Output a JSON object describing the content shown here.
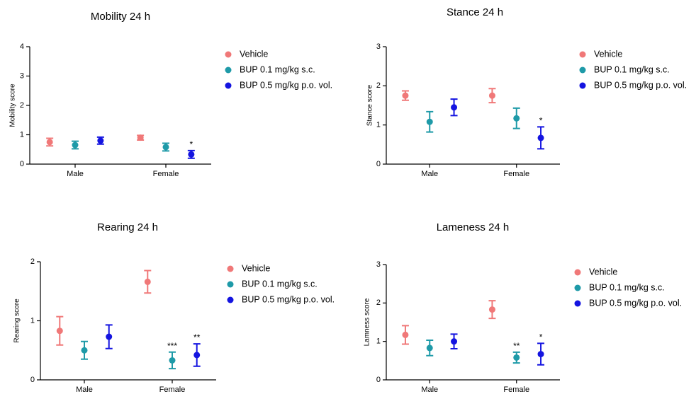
{
  "chart_data": [
    {
      "type": "errorbar",
      "title": "Mobility 24 h",
      "ylabel": "Mobility score",
      "categories": [
        "Male",
        "Female"
      ],
      "ylim": [
        0,
        4
      ],
      "yticks": [
        0,
        1,
        2,
        3,
        4
      ],
      "legend": "right",
      "series": [
        {
          "name": "Vehicle",
          "color": "#f07878",
          "values": [
            0.75,
            0.9
          ],
          "errors": [
            0.13,
            0.08
          ],
          "annotations": [
            null,
            null
          ]
        },
        {
          "name": "BUP 0.1 mg/kg s.c.",
          "color": "#1e9aa8",
          "values": [
            0.65,
            0.58
          ],
          "errors": [
            0.13,
            0.13
          ],
          "annotations": [
            null,
            null
          ]
        },
        {
          "name": "BUP 0.5 mg/kg p.o. vol.",
          "color": "#1414e0",
          "values": [
            0.8,
            0.33
          ],
          "errors": [
            0.12,
            0.13
          ],
          "annotations": [
            null,
            "*"
          ]
        }
      ]
    },
    {
      "type": "errorbar",
      "title": "Stance 24 h",
      "ylabel": "Stance score",
      "categories": [
        "Male",
        "Female"
      ],
      "ylim": [
        0,
        3
      ],
      "yticks": [
        0,
        1,
        2,
        3
      ],
      "legend": "right",
      "series": [
        {
          "name": "Vehicle",
          "color": "#f07878",
          "values": [
            1.75,
            1.75
          ],
          "errors": [
            0.12,
            0.18
          ],
          "annotations": [
            null,
            null
          ]
        },
        {
          "name": "BUP 0.1 mg/kg s.c.",
          "color": "#1e9aa8",
          "values": [
            1.08,
            1.17
          ],
          "errors": [
            0.26,
            0.26
          ],
          "annotations": [
            null,
            null
          ]
        },
        {
          "name": "BUP 0.5 mg/kg p.o. vol.",
          "color": "#1414e0",
          "values": [
            1.45,
            0.67
          ],
          "errors": [
            0.21,
            0.28
          ],
          "annotations": [
            null,
            "*"
          ]
        }
      ]
    },
    {
      "type": "errorbar",
      "title": "Rearing 24 h",
      "ylabel": "Rearing score",
      "categories": [
        "Male",
        "Female"
      ],
      "ylim": [
        0,
        2
      ],
      "yticks": [
        0,
        1,
        2
      ],
      "legend": "right",
      "series": [
        {
          "name": "Vehicle",
          "color": "#f07878",
          "values": [
            0.83,
            1.66
          ],
          "errors": [
            0.24,
            0.19
          ],
          "annotations": [
            null,
            null
          ]
        },
        {
          "name": "BUP 0.1 mg/kg s.c.",
          "color": "#1e9aa8",
          "values": [
            0.5,
            0.33
          ],
          "errors": [
            0.15,
            0.14
          ],
          "annotations": [
            null,
            "***"
          ]
        },
        {
          "name": "BUP 0.5 mg/kg p.o. vol.",
          "color": "#1414e0",
          "values": [
            0.73,
            0.42
          ],
          "errors": [
            0.2,
            0.19
          ],
          "annotations": [
            null,
            "**"
          ]
        }
      ]
    },
    {
      "type": "errorbar",
      "title": "Lameness 24 h",
      "ylabel": "Lamness score",
      "categories": [
        "Male",
        "Female"
      ],
      "ylim": [
        0,
        3
      ],
      "yticks": [
        0,
        1,
        2,
        3
      ],
      "legend": "right",
      "series": [
        {
          "name": "Vehicle",
          "color": "#f07878",
          "values": [
            1.17,
            1.83
          ],
          "errors": [
            0.24,
            0.23
          ],
          "annotations": [
            null,
            null
          ]
        },
        {
          "name": "BUP 0.1 mg/kg s.c.",
          "color": "#1e9aa8",
          "values": [
            0.83,
            0.58
          ],
          "errors": [
            0.2,
            0.14
          ],
          "annotations": [
            null,
            "**"
          ]
        },
        {
          "name": "BUP 0.5 mg/kg p.o. vol.",
          "color": "#1414e0",
          "values": [
            1.0,
            0.67
          ],
          "errors": [
            0.19,
            0.28
          ],
          "annotations": [
            null,
            "*"
          ]
        }
      ]
    }
  ]
}
